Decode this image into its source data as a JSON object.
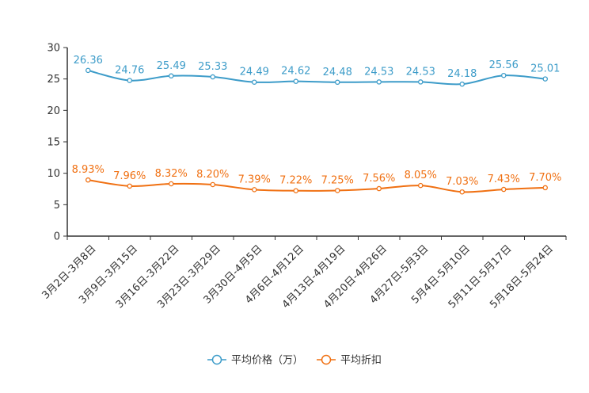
{
  "chart_data": {
    "type": "line",
    "title": "",
    "xlabel": "",
    "ylabel": "",
    "ylim": [
      0,
      30
    ],
    "yticks": [
      0,
      5,
      10,
      15,
      20,
      25,
      30
    ],
    "grid": false,
    "legend_position": "bottom-center",
    "categories": [
      "3月2日-3月8日",
      "3月9日-3月15日",
      "3月16日-3月22日",
      "3月23日-3月29日",
      "3月30日-4月5日",
      "4月6日-4月12日",
      "4月13日-4月19日",
      "4月20日-4月26日",
      "4月27日-5月3日",
      "5月4日-5月10日",
      "5月11日-5月17日",
      "5月18日-5月24日"
    ],
    "series": [
      {
        "name": "平均价格（万）",
        "color": "#3d9cc9",
        "values": [
          26.36,
          24.76,
          25.49,
          25.33,
          24.49,
          24.62,
          24.48,
          24.53,
          24.53,
          24.18,
          25.56,
          25.01
        ],
        "labels": [
          "26.36",
          "24.76",
          "25.49",
          "25.33",
          "24.49",
          "24.62",
          "24.48",
          "24.53",
          "24.53",
          "24.18",
          "25.56",
          "25.01"
        ]
      },
      {
        "name": "平均折扣",
        "color": "#f07012",
        "values": [
          8.93,
          7.96,
          8.32,
          8.2,
          7.39,
          7.22,
          7.25,
          7.56,
          8.05,
          7.03,
          7.43,
          7.7
        ],
        "labels": [
          "8.93%",
          "7.96%",
          "8.32%",
          "8.20%",
          "7.39%",
          "7.22%",
          "7.25%",
          "7.56%",
          "8.05%",
          "7.03%",
          "7.43%",
          "7.70%"
        ]
      }
    ]
  }
}
